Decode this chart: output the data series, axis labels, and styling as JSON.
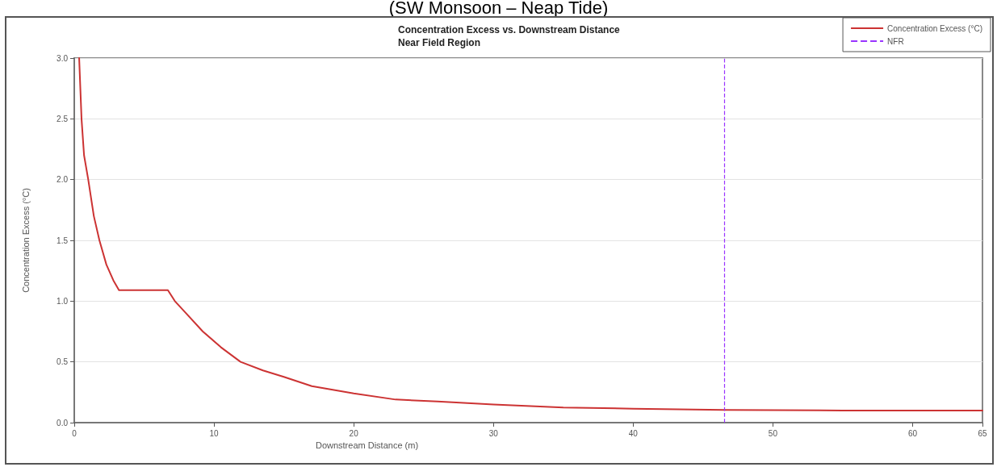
{
  "chart_data": {
    "type": "line",
    "title": "Concentration Excess vs. Downstream Distance",
    "subtitle": "Near Field Region",
    "xlabel": "Downstream Distance (m)",
    "ylabel": "Concentration Excess (°C)",
    "annotations": [
      "(SW Monsoon – Neap Tide)"
    ],
    "series": [
      {
        "name": "Concentration Excess (°C)",
        "color": "#cc3333",
        "x": [
          0.35,
          0.52,
          0.7,
          1.0,
          1.4,
          1.8,
          2.3,
          2.8,
          3.2,
          4,
          5,
          6,
          6.7,
          7.2,
          8,
          9.2,
          10.5,
          11.9,
          13.5,
          15,
          17,
          20,
          23,
          26,
          30,
          35,
          40,
          46.5,
          55,
          65
        ],
        "values": [
          3.0,
          2.5,
          2.2,
          2.0,
          1.7,
          1.5,
          1.3,
          1.17,
          1.09,
          1.09,
          1.09,
          1.09,
          1.09,
          1.0,
          0.9,
          0.75,
          0.62,
          0.5,
          0.43,
          0.377,
          0.3,
          0.24,
          0.19,
          0.175,
          0.15,
          0.125,
          0.115,
          0.105,
          0.1,
          0.1
        ]
      }
    ],
    "ref_lines": [
      {
        "axis": "x",
        "value": 46.5,
        "label": "NFR",
        "color": "#9933ff",
        "line_style": "dashed"
      }
    ],
    "xlim": [
      0,
      65
    ],
    "xticks": [
      0,
      10,
      20,
      30,
      40,
      50,
      60,
      65
    ],
    "ylim": [
      0,
      3
    ],
    "yticks": [
      {
        "value": 0,
        "label": "0.0"
      },
      0.5,
      {
        "value": 1,
        "label": "1.0"
      },
      1.5,
      {
        "value": 2,
        "label": "2.0"
      },
      2.5,
      {
        "value": 3,
        "label": "3.0"
      }
    ],
    "grid": "y",
    "legend": "top right",
    "marker": "none",
    "line_style": "solid"
  }
}
